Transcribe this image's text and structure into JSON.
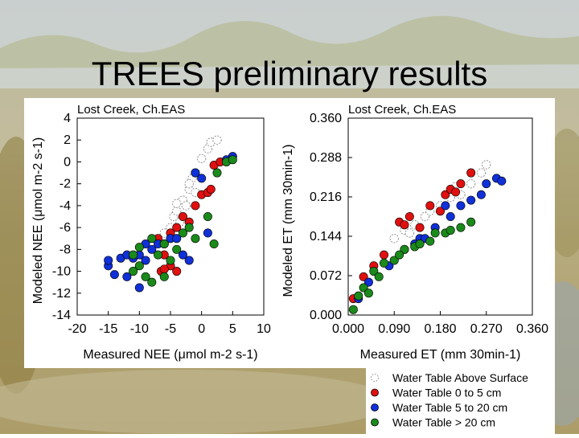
{
  "slide": {
    "title": "TREES preliminary results"
  },
  "colors": {
    "above_surface": "#ffffff",
    "wt_0_5": "#e01010",
    "wt_5_20": "#1030d8",
    "wt_gt_20": "#1a8a1a"
  },
  "legend": {
    "items": [
      {
        "label": "Water Table Above Surface",
        "color": "#ffffff",
        "dashed": true
      },
      {
        "label": "Water Table 0 to 5 cm",
        "color": "#e01010",
        "dashed": false
      },
      {
        "label": "Water Table 5 to 20 cm",
        "color": "#1030d8",
        "dashed": false
      },
      {
        "label": "Water Table > 20 cm",
        "color": "#1a8a1a",
        "dashed": false
      }
    ]
  },
  "chart_data": [
    {
      "type": "scatter",
      "title": "Lost Creek, Ch.EAS",
      "xlabel": "Measured NEE (μmol m-2 s-1)",
      "ylabel": "Modeled NEE (μmol m-2 s-1)",
      "xlim": [
        -20,
        10
      ],
      "ylim": [
        -14,
        4
      ],
      "xticks": [
        "-20",
        "-15",
        "-10",
        "-5",
        "0",
        "5",
        "10"
      ],
      "yticks": [
        "4",
        "2",
        "0",
        "-2",
        "-4",
        "-6",
        "-8",
        "-10",
        "-12",
        "-14"
      ],
      "series": [
        {
          "name": "Water Table Above Surface",
          "points": [
            [
              -6,
              -6.5
            ],
            [
              -5,
              -6
            ],
            [
              -4.5,
              -5
            ],
            [
              -4,
              -4.5
            ],
            [
              -3,
              -3.5
            ],
            [
              -2,
              -2.5
            ],
            [
              -1.5,
              -1.5
            ],
            [
              -1,
              -2.8
            ],
            [
              -2.5,
              -4
            ],
            [
              -3.5,
              -5.5
            ],
            [
              0,
              0.3
            ],
            [
              1,
              1.2
            ],
            [
              1.5,
              1.8
            ],
            [
              2.5,
              2
            ],
            [
              -2,
              -2
            ],
            [
              -1,
              -1
            ],
            [
              -4,
              -3.8
            ]
          ]
        },
        {
          "name": "Water Table 0 to 5 cm",
          "points": [
            [
              -7,
              -7
            ],
            [
              -6,
              -8.5
            ],
            [
              -5,
              -6.5
            ],
            [
              -4,
              -6
            ],
            [
              -3,
              -5
            ],
            [
              -2,
              -5.5
            ],
            [
              -1,
              -4
            ],
            [
              0,
              -3
            ],
            [
              1,
              -2.8
            ],
            [
              1.5,
              -2.5
            ],
            [
              2,
              -0.3
            ],
            [
              3,
              0
            ],
            [
              -6.5,
              -10
            ],
            [
              -4,
              -10
            ],
            [
              -5,
              -9.5
            ],
            [
              -6,
              -9.8
            ]
          ]
        },
        {
          "name": "Water Table 5 to 20 cm",
          "points": [
            [
              -15,
              -9.5
            ],
            [
              -14,
              -10.3
            ],
            [
              -13,
              -8.8
            ],
            [
              -12,
              -8.5
            ],
            [
              -11,
              -8.8
            ],
            [
              -10,
              -8.5
            ],
            [
              -10,
              -11.5
            ],
            [
              -9,
              -7.5
            ],
            [
              -8,
              -8
            ],
            [
              -7,
              -7.5
            ],
            [
              -6,
              -7.5
            ],
            [
              -5,
              -7
            ],
            [
              -4,
              -7
            ],
            [
              -3,
              -8.5
            ],
            [
              -2,
              -9
            ],
            [
              -1,
              -1
            ],
            [
              0,
              -1.5
            ],
            [
              1,
              -6.5
            ],
            [
              4,
              0.2
            ],
            [
              5,
              0.5
            ],
            [
              -15,
              -9
            ],
            [
              -12,
              -10.5
            ],
            [
              -9,
              -9
            ]
          ]
        },
        {
          "name": "Water Table > 20 cm",
          "points": [
            [
              -11,
              -8.5
            ],
            [
              -10,
              -9.5
            ],
            [
              -9,
              -10.5
            ],
            [
              -8,
              -11
            ],
            [
              -7,
              -8.5
            ],
            [
              -6,
              -10.5
            ],
            [
              -5,
              -9
            ],
            [
              -4,
              -8
            ],
            [
              -3,
              -6.5
            ],
            [
              -2,
              -6
            ],
            [
              -1,
              -7
            ],
            [
              1,
              -5
            ],
            [
              2,
              -7.5
            ],
            [
              4,
              0
            ],
            [
              5,
              0.2
            ],
            [
              -10,
              -7.8
            ],
            [
              -8,
              -7
            ],
            [
              -11,
              -10
            ],
            [
              -6,
              -7.5
            ],
            [
              2.5,
              -1
            ]
          ]
        }
      ]
    },
    {
      "type": "scatter",
      "title": "Lost Creek, Ch.EAS",
      "xlabel": "Measured ET (mm 30min-1)",
      "ylabel": "Modeled ET (mm 30min-1)",
      "xlim": [
        0,
        0.36
      ],
      "ylim": [
        0,
        0.36
      ],
      "xticks": [
        "0.000",
        "0.090",
        "0.180",
        "0.270",
        "0.360"
      ],
      "yticks": [
        "0.360",
        "0.288",
        "0.216",
        "0.144",
        "0.072",
        "0.000"
      ],
      "series": [
        {
          "name": "Water Table Above Surface",
          "points": [
            [
              0.09,
              0.14
            ],
            [
              0.11,
              0.155
            ],
            [
              0.13,
              0.165
            ],
            [
              0.15,
              0.18
            ],
            [
              0.18,
              0.2
            ],
            [
              0.2,
              0.215
            ],
            [
              0.22,
              0.22
            ],
            [
              0.24,
              0.24
            ],
            [
              0.26,
              0.26
            ],
            [
              0.27,
              0.275
            ],
            [
              0.12,
              0.15
            ],
            [
              0.16,
              0.19
            ],
            [
              0.21,
              0.235
            ]
          ]
        },
        {
          "name": "Water Table 0 to 5 cm",
          "points": [
            [
              0.01,
              0.03
            ],
            [
              0.03,
              0.07
            ],
            [
              0.05,
              0.09
            ],
            [
              0.07,
              0.11
            ],
            [
              0.1,
              0.17
            ],
            [
              0.12,
              0.18
            ],
            [
              0.16,
              0.2
            ],
            [
              0.19,
              0.22
            ],
            [
              0.2,
              0.23
            ],
            [
              0.22,
              0.24
            ],
            [
              0.24,
              0.26
            ],
            [
              0.14,
              0.16
            ],
            [
              0.18,
              0.19
            ],
            [
              0.21,
              0.225
            ],
            [
              0.11,
              0.165
            ]
          ]
        },
        {
          "name": "Water Table 5 to 20 cm",
          "points": [
            [
              0.02,
              0.03
            ],
            [
              0.04,
              0.06
            ],
            [
              0.08,
              0.09
            ],
            [
              0.11,
              0.12
            ],
            [
              0.14,
              0.14
            ],
            [
              0.17,
              0.16
            ],
            [
              0.19,
              0.2
            ],
            [
              0.2,
              0.18
            ],
            [
              0.22,
              0.2
            ],
            [
              0.24,
              0.21
            ],
            [
              0.26,
              0.22
            ],
            [
              0.27,
              0.24
            ],
            [
              0.29,
              0.25
            ],
            [
              0.3,
              0.245
            ],
            [
              0.15,
              0.14
            ],
            [
              0.13,
              0.13
            ]
          ]
        },
        {
          "name": "Water Table > 20 cm",
          "points": [
            [
              0.01,
              0.01
            ],
            [
              0.02,
              0.035
            ],
            [
              0.03,
              0.05
            ],
            [
              0.05,
              0.08
            ],
            [
              0.07,
              0.095
            ],
            [
              0.09,
              0.1
            ],
            [
              0.11,
              0.12
            ],
            [
              0.13,
              0.125
            ],
            [
              0.14,
              0.13
            ],
            [
              0.16,
              0.135
            ],
            [
              0.19,
              0.15
            ],
            [
              0.2,
              0.155
            ],
            [
              0.22,
              0.16
            ],
            [
              0.24,
              0.17
            ],
            [
              0.06,
              0.07
            ],
            [
              0.1,
              0.11
            ],
            [
              0.17,
              0.15
            ],
            [
              0.04,
              0.04
            ]
          ]
        }
      ]
    }
  ]
}
